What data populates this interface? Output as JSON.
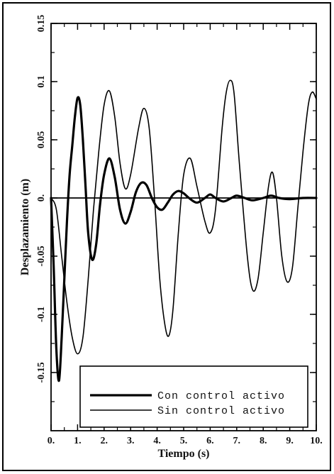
{
  "chart_data": {
    "type": "line",
    "xlabel": "Tiempo (s)",
    "ylabel": "Desplazamiento (m)",
    "xlim": [
      0,
      10
    ],
    "ylim": [
      -0.2,
      0.15
    ],
    "x_ticks": [
      {
        "value": 0,
        "label": "0."
      },
      {
        "value": 1,
        "label": "1."
      },
      {
        "value": 2,
        "label": "2."
      },
      {
        "value": 3,
        "label": "3."
      },
      {
        "value": 4,
        "label": "4."
      },
      {
        "value": 5,
        "label": "5."
      },
      {
        "value": 6,
        "label": "6."
      },
      {
        "value": 7,
        "label": "7."
      },
      {
        "value": 8,
        "label": "8."
      },
      {
        "value": 9,
        "label": "9."
      },
      {
        "value": 10,
        "label": "10."
      }
    ],
    "y_ticks": [
      {
        "value": 0.15,
        "label": "0.15"
      },
      {
        "value": 0.1,
        "label": "0.1"
      },
      {
        "value": 0.05,
        "label": "0.05"
      },
      {
        "value": 0,
        "label": "0."
      },
      {
        "value": -0.05,
        "label": "-0.05"
      },
      {
        "value": -0.1,
        "label": "-0.1"
      },
      {
        "value": -0.15,
        "label": "-0.15"
      }
    ],
    "grid": false,
    "legend_position": "bottom",
    "series": [
      {
        "name": "Con control activo",
        "stroke_width": 3.2,
        "color": "#000000",
        "points": [
          [
            0.0,
            0.0
          ],
          [
            0.1,
            -0.06
          ],
          [
            0.2,
            -0.13
          ],
          [
            0.3,
            -0.157
          ],
          [
            0.4,
            -0.12
          ],
          [
            0.5,
            -0.07
          ],
          [
            0.6,
            -0.02
          ],
          [
            0.7,
            0.02
          ],
          [
            0.8,
            0.045
          ],
          [
            0.9,
            0.07
          ],
          [
            1.0,
            0.086
          ],
          [
            1.1,
            0.08
          ],
          [
            1.2,
            0.05
          ],
          [
            1.3,
            0.01
          ],
          [
            1.4,
            -0.03
          ],
          [
            1.55,
            -0.053
          ],
          [
            1.7,
            -0.04
          ],
          [
            1.85,
            -0.005
          ],
          [
            2.0,
            0.02
          ],
          [
            2.2,
            0.034
          ],
          [
            2.4,
            0.018
          ],
          [
            2.6,
            -0.01
          ],
          [
            2.8,
            -0.022
          ],
          [
            3.0,
            -0.012
          ],
          [
            3.2,
            0.005
          ],
          [
            3.4,
            0.013
          ],
          [
            3.6,
            0.011
          ],
          [
            3.8,
            0.0
          ],
          [
            4.0,
            -0.008
          ],
          [
            4.2,
            -0.01
          ],
          [
            4.4,
            -0.004
          ],
          [
            4.6,
            0.003
          ],
          [
            4.8,
            0.006
          ],
          [
            5.0,
            0.004
          ],
          [
            5.2,
            0.0
          ],
          [
            5.5,
            -0.004
          ],
          [
            5.8,
            0.0
          ],
          [
            6.0,
            0.003
          ],
          [
            6.2,
            0.0
          ],
          [
            6.5,
            -0.003
          ],
          [
            6.8,
            0.0
          ],
          [
            7.0,
            0.002
          ],
          [
            7.3,
            0.0
          ],
          [
            7.6,
            -0.002
          ],
          [
            8.0,
            0.0
          ],
          [
            8.3,
            0.002
          ],
          [
            8.6,
            0.0
          ],
          [
            9.0,
            -0.001
          ],
          [
            9.5,
            0.0
          ],
          [
            10.0,
            0.0
          ]
        ]
      },
      {
        "name": "Sin control activo",
        "stroke_width": 1.6,
        "color": "#000000",
        "points": [
          [
            0.0,
            0.0
          ],
          [
            0.2,
            -0.01
          ],
          [
            0.4,
            -0.05
          ],
          [
            0.6,
            -0.09
          ],
          [
            0.8,
            -0.12
          ],
          [
            1.0,
            -0.134
          ],
          [
            1.2,
            -0.12
          ],
          [
            1.4,
            -0.07
          ],
          [
            1.6,
            -0.01
          ],
          [
            1.8,
            0.04
          ],
          [
            2.0,
            0.08
          ],
          [
            2.2,
            0.092
          ],
          [
            2.4,
            0.07
          ],
          [
            2.6,
            0.03
          ],
          [
            2.8,
            0.008
          ],
          [
            3.0,
            0.02
          ],
          [
            3.3,
            0.06
          ],
          [
            3.5,
            0.077
          ],
          [
            3.7,
            0.06
          ],
          [
            3.9,
            0.0
          ],
          [
            4.1,
            -0.07
          ],
          [
            4.3,
            -0.11
          ],
          [
            4.45,
            -0.118
          ],
          [
            4.6,
            -0.095
          ],
          [
            4.8,
            -0.03
          ],
          [
            5.0,
            0.02
          ],
          [
            5.25,
            0.034
          ],
          [
            5.5,
            0.01
          ],
          [
            5.8,
            -0.02
          ],
          [
            6.0,
            -0.03
          ],
          [
            6.2,
            -0.01
          ],
          [
            6.45,
            0.06
          ],
          [
            6.6,
            0.09
          ],
          [
            6.75,
            0.101
          ],
          [
            6.9,
            0.09
          ],
          [
            7.1,
            0.03
          ],
          [
            7.4,
            -0.05
          ],
          [
            7.6,
            -0.079
          ],
          [
            7.8,
            -0.07
          ],
          [
            8.0,
            -0.03
          ],
          [
            8.2,
            0.01
          ],
          [
            8.35,
            0.022
          ],
          [
            8.5,
            0.0
          ],
          [
            8.7,
            -0.05
          ],
          [
            8.9,
            -0.072
          ],
          [
            9.1,
            -0.06
          ],
          [
            9.3,
            -0.01
          ],
          [
            9.5,
            0.04
          ],
          [
            9.7,
            0.08
          ],
          [
            9.85,
            0.091
          ],
          [
            10.0,
            0.085
          ]
        ]
      }
    ]
  }
}
